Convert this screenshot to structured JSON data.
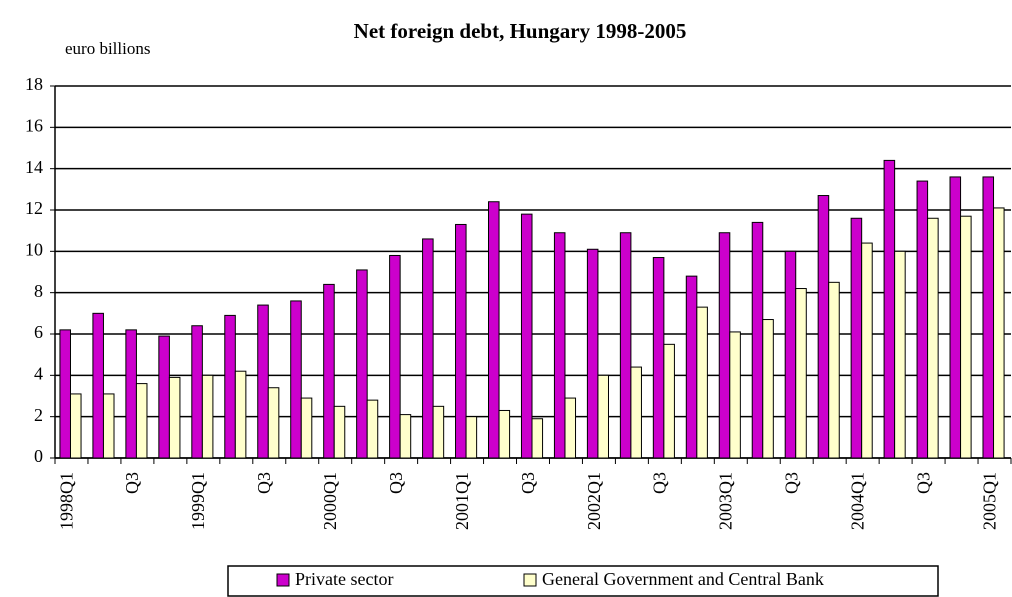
{
  "chart_data": {
    "type": "bar",
    "title": "Net foreign debt, Hungary 1998-2005",
    "y_label": "euro billions",
    "categories": [
      "1998Q1",
      null,
      "Q3",
      null,
      "1999Q1",
      null,
      "Q3",
      null,
      "2000Q1",
      null,
      "Q3",
      null,
      "2001Q1",
      null,
      "Q3",
      null,
      "2002Q1",
      null,
      "Q3",
      null,
      "2003Q1",
      null,
      "Q3",
      null,
      "2004Q1",
      null,
      "Q3",
      null,
      "2005Q1"
    ],
    "series": [
      {
        "name": "Private sector",
        "color": "#cc00cc",
        "values": [
          6.2,
          7.0,
          6.2,
          5.9,
          6.4,
          6.9,
          7.4,
          7.6,
          8.4,
          9.1,
          9.8,
          10.6,
          11.3,
          12.4,
          11.8,
          10.9,
          10.1,
          10.9,
          9.7,
          8.8,
          10.9,
          11.4,
          10.0,
          12.7,
          11.6,
          14.4,
          13.4,
          13.6,
          13.6
        ]
      },
      {
        "name": "General Government and Central Bank",
        "color": "#ffffcc",
        "values": [
          3.1,
          3.1,
          3.6,
          3.9,
          4.0,
          4.2,
          3.4,
          2.9,
          2.5,
          2.8,
          2.1,
          2.5,
          2.0,
          2.3,
          1.9,
          2.9,
          4.0,
          4.4,
          5.5,
          7.3,
          6.1,
          6.7,
          8.2,
          8.5,
          10.4,
          10.0,
          11.6,
          11.7,
          12.1
        ]
      }
    ],
    "ylim": [
      0,
      18
    ],
    "yticks": [
      0,
      2,
      4,
      6,
      8,
      10,
      12,
      14,
      16,
      18
    ],
    "grid": true,
    "legend": "bottom"
  }
}
